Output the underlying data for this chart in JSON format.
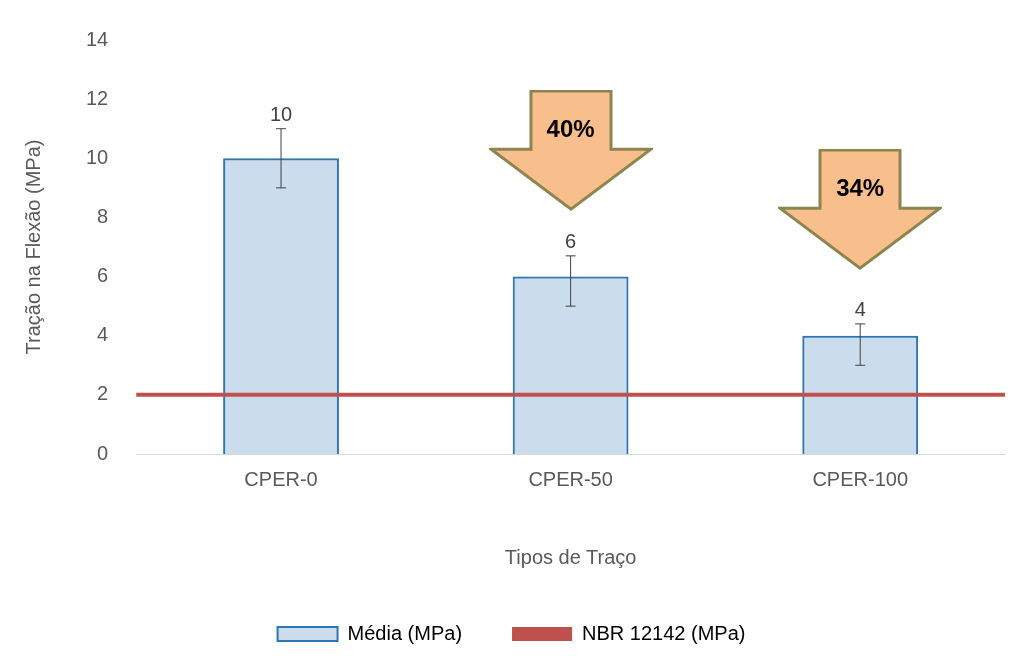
{
  "chart_data": {
    "type": "bar",
    "categories": [
      "CPER-0",
      "CPER-50",
      "CPER-100"
    ],
    "series": [
      {
        "name": "Média (MPa)",
        "color": "#2e75b6",
        "values": [
          10,
          6,
          4
        ],
        "errors": [
          1,
          [
            5,
            6.7
          ],
          [
            3,
            4.4
          ]
        ]
      }
    ],
    "data_labels": true,
    "xlabel": "Tipos de Traço",
    "ylabel": "Tração na Flexão (MPa)",
    "ylim": [
      0,
      14
    ],
    "yticks": [
      0,
      2,
      4,
      6,
      8,
      10,
      12,
      14
    ],
    "grid": false,
    "legend": "bottom",
    "ref_lines": [
      {
        "axis": "y",
        "value": 2,
        "label": "NBR 12142 (MPa)",
        "color": "#c0504d"
      }
    ],
    "annotations": [
      "40%",
      "34%"
    ]
  }
}
